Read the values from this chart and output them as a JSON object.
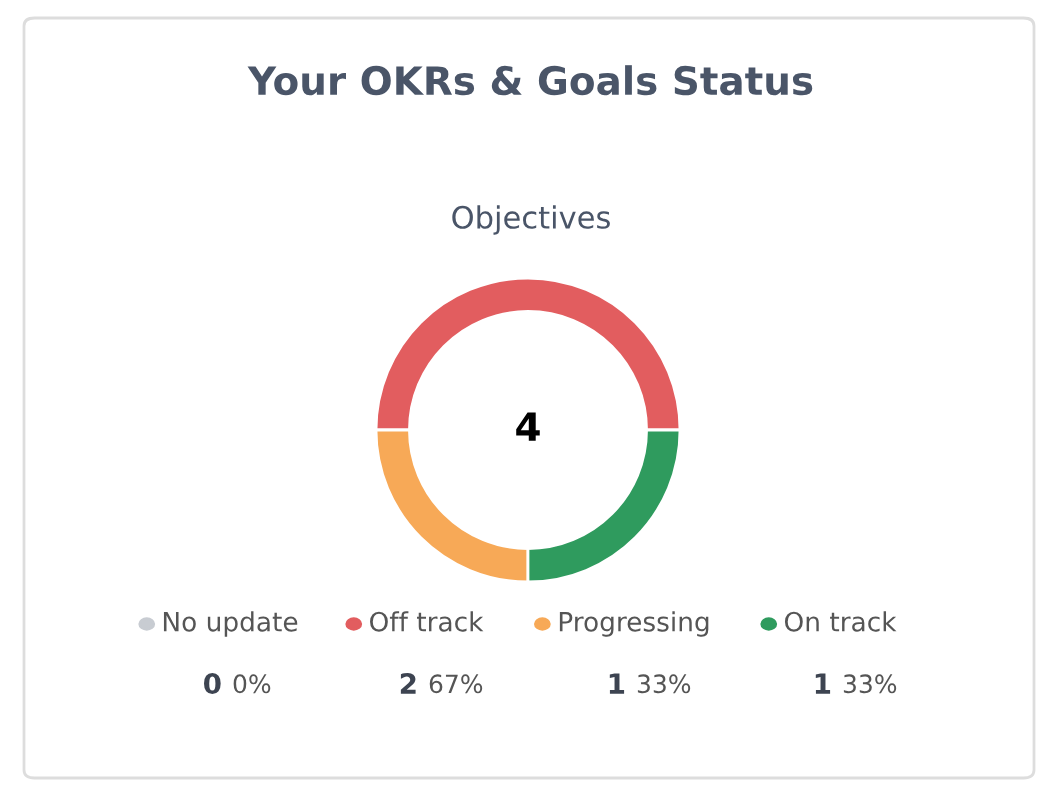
{
  "chart_data": {
    "type": "donut",
    "title": "Your OKRs & Goals Status",
    "subtitle": "Objectives",
    "categories": [
      "No update",
      "Off track",
      "Progressing",
      "On track"
    ],
    "values": [
      0,
      50,
      25,
      25
    ],
    "colors": [
      "#c8ccd2",
      "#e25d5f",
      "#f7a957",
      "#2f9b5e"
    ],
    "annotations": [
      "4",
      "0",
      "0%",
      "2",
      "67%",
      "1",
      "33%",
      "1",
      "33%"
    ],
    "legend": "bottom"
  }
}
